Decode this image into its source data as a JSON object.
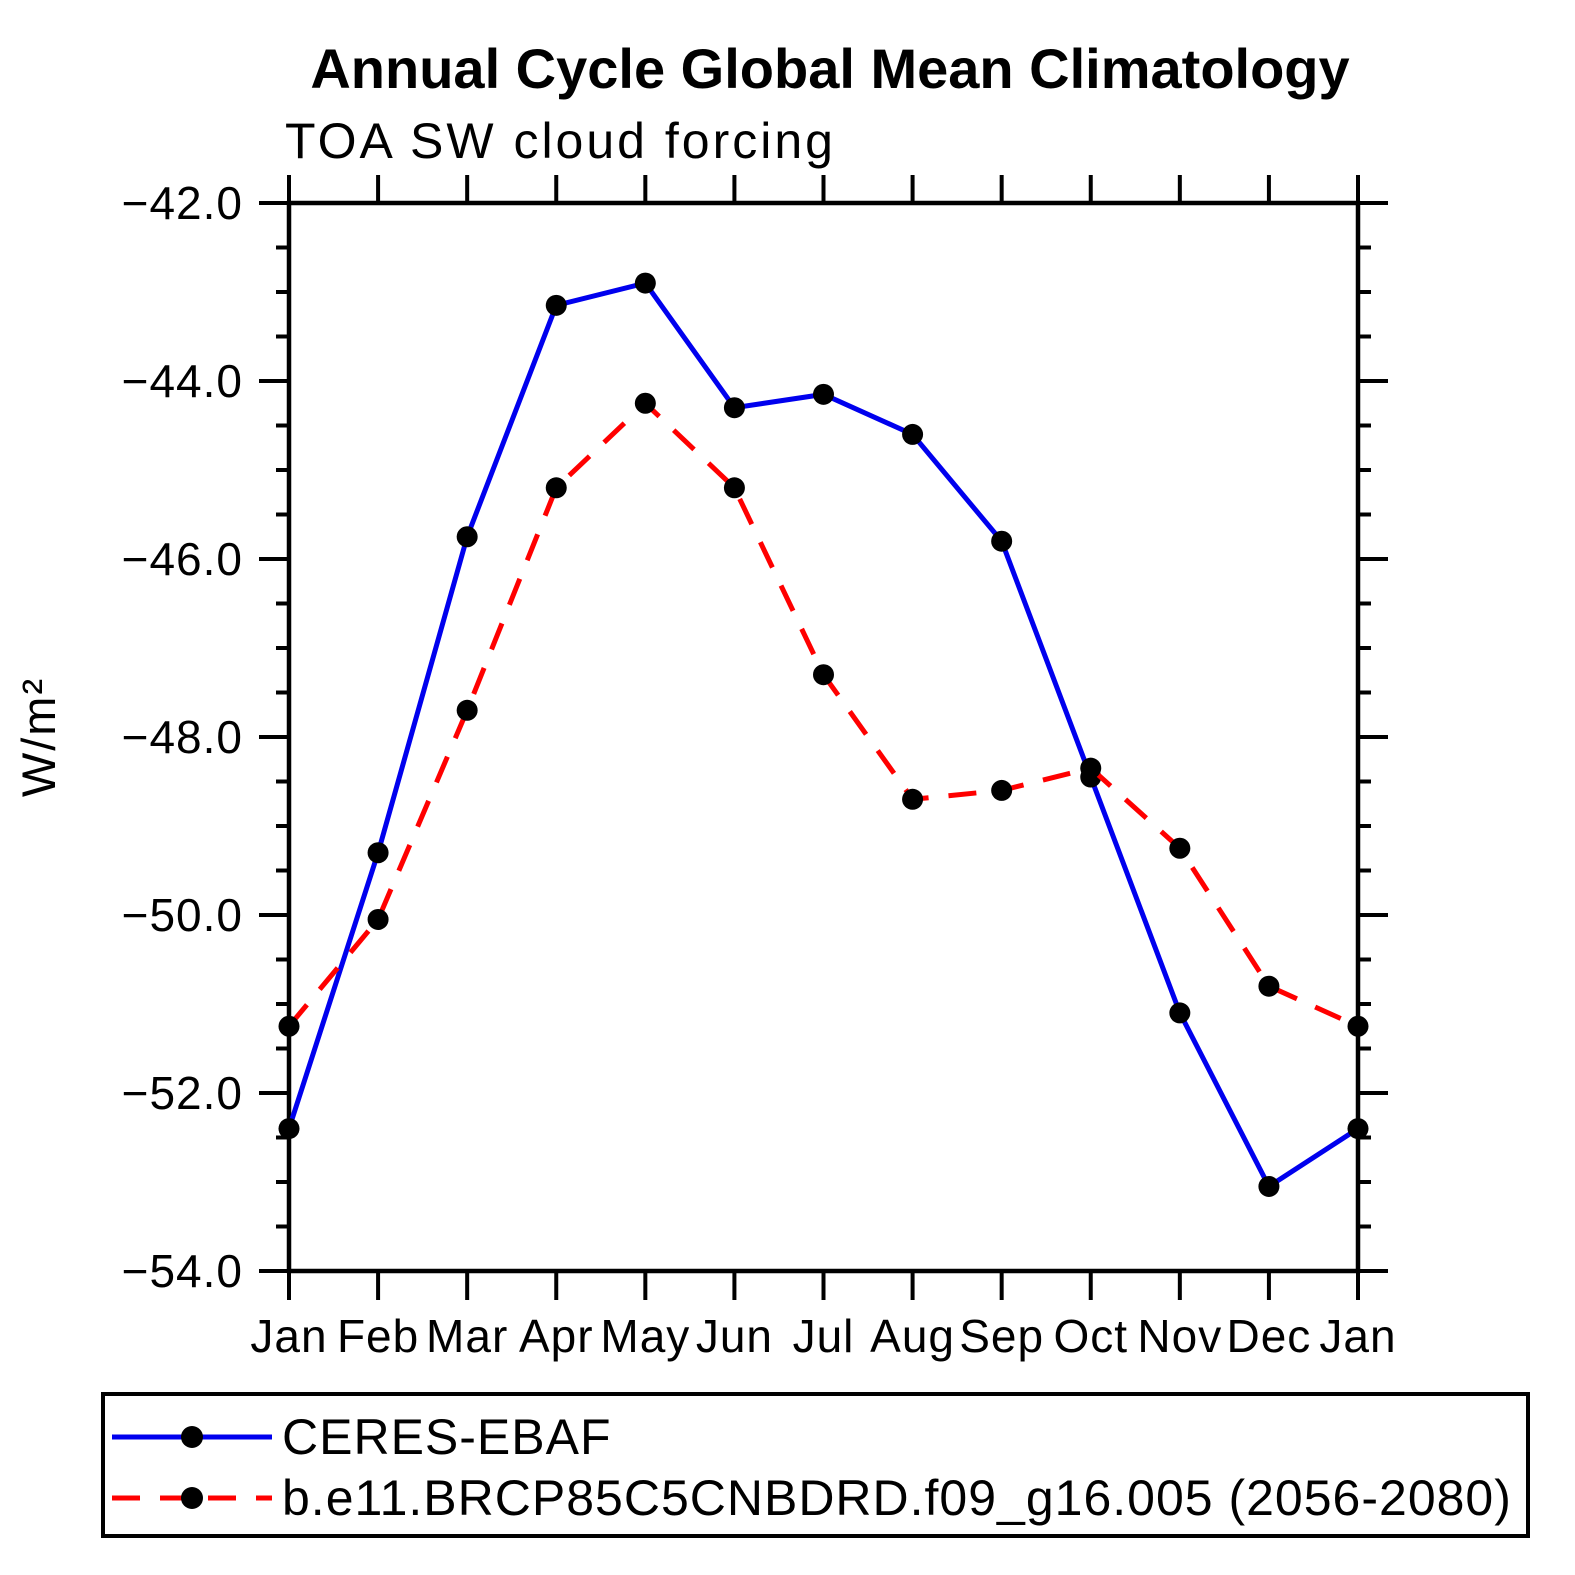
{
  "title": "Annual Cycle Global Mean Climatology",
  "subtitle": "TOA SW cloud forcing",
  "y_axis_label": "W/m²",
  "colors": {
    "axis": "#000000",
    "background": "#ffffff",
    "series1": "#0000ee",
    "series2": "#ff0000",
    "marker": "#000000"
  },
  "chart_data": {
    "type": "line",
    "title": "Annual Cycle Global Mean Climatology",
    "subtitle": "TOA SW cloud forcing",
    "ylabel": "W/m²",
    "xlabel": "",
    "categories": [
      "Jan",
      "Feb",
      "Mar",
      "Apr",
      "May",
      "Jun",
      "Jul",
      "Aug",
      "Sep",
      "Oct",
      "Nov",
      "Dec",
      "Jan"
    ],
    "ylim": [
      -54.0,
      -42.0
    ],
    "ytick_major_step": 2.0,
    "ytick_minor_step": 0.5,
    "ytick_labels": [
      "−42.0",
      "−44.0",
      "−46.0",
      "−48.0",
      "−50.0",
      "−52.0",
      "−54.0"
    ],
    "grid": false,
    "legend_position": "bottom",
    "series": [
      {
        "name": "CERES-EBAF",
        "line_style": "solid",
        "line_color": "#0000ee",
        "marker": "filled-circle",
        "marker_color": "#000000",
        "values": [
          -52.4,
          -49.3,
          -45.75,
          -43.15,
          -42.9,
          -44.3,
          -44.15,
          -44.6,
          -45.8,
          -48.45,
          -51.1,
          -53.05,
          -52.4
        ]
      },
      {
        "name": "b.e11.BRCP85C5CNBDRD.f09_g16.005 (2056-2080)",
        "line_style": "dashed",
        "line_color": "#ff0000",
        "marker": "filled-circle",
        "marker_color": "#000000",
        "values": [
          -51.25,
          -50.05,
          -47.7,
          -45.2,
          -44.25,
          -45.2,
          -47.3,
          -48.7,
          -48.6,
          -48.35,
          -49.25,
          -50.8,
          -51.25
        ]
      }
    ]
  }
}
